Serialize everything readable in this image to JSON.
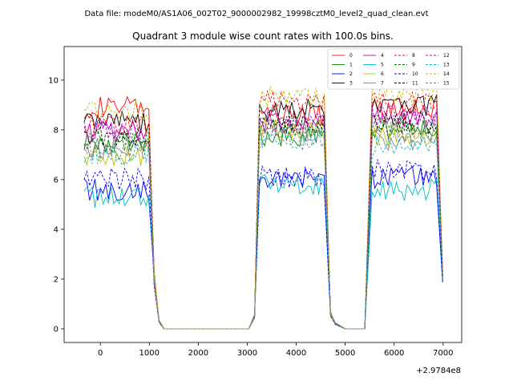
{
  "header": {
    "data_file": "Data file: modeM0/AS1A06_002T02_9000002982_19998cztM0_level2_quad_clean.evt"
  },
  "chart_data": {
    "type": "line",
    "title": "Quadrant 3 module wise count rates with 100.0s bins.",
    "xlabel": "",
    "ylabel": "",
    "x_offset_label": "+2.9784e8",
    "xlim": [
      -740,
      7380
    ],
    "ylim": [
      -0.55,
      11.35
    ],
    "xticks": [
      0,
      1000,
      2000,
      3000,
      4000,
      5000,
      6000,
      7000
    ],
    "yticks": [
      0,
      2,
      4,
      6,
      8,
      10
    ],
    "legend_position": "upper right",
    "legend_columns": 4,
    "segments": [
      {
        "x_start": -330,
        "x_end": 1000,
        "x_step": 55
      },
      {
        "x_start": 3250,
        "x_end": 4600,
        "x_step": 55
      },
      {
        "x_start": 5550,
        "x_end": 6920,
        "x_step": 55
      }
    ],
    "gap_x": [
      1100,
      1200,
      1300,
      1500,
      1700,
      1900,
      2100,
      2300,
      2500,
      2700,
      2900,
      3030,
      3150,
      4700,
      4800,
      5000,
      5200,
      5400,
      6990
    ],
    "gap_y": [
      2.0,
      0.3,
      0.0,
      0.0,
      0.0,
      0.0,
      0.0,
      0.0,
      0.0,
      0.0,
      0.0,
      0.0,
      0.5,
      0.6,
      0.2,
      0.0,
      0.0,
      0.0,
      2.2
    ],
    "series": [
      {
        "name": "0",
        "color": "#ff0000",
        "dash": false,
        "levels": [
          8.9,
          8.6,
          8.8
        ]
      },
      {
        "name": "1",
        "color": "#008000",
        "dash": false,
        "levels": [
          7.5,
          7.7,
          8.1
        ]
      },
      {
        "name": "2",
        "color": "#0000ff",
        "dash": false,
        "levels": [
          5.6,
          6.0,
          6.1
        ]
      },
      {
        "name": "3",
        "color": "#000000",
        "dash": false,
        "levels": [
          8.3,
          8.8,
          9.0
        ]
      },
      {
        "name": "4",
        "color": "#c000c0",
        "dash": false,
        "levels": [
          8.0,
          8.3,
          8.4
        ]
      },
      {
        "name": "5",
        "color": "#00bfbf",
        "dash": false,
        "levels": [
          5.3,
          5.8,
          5.6
        ]
      },
      {
        "name": "6",
        "color": "#bfbf00",
        "dash": false,
        "levels": [
          7.0,
          8.0,
          7.8
        ]
      },
      {
        "name": "7",
        "color": "#808080",
        "dash": false,
        "levels": [
          7.3,
          8.0,
          7.6
        ]
      },
      {
        "name": "8",
        "color": "#ff0000",
        "dash": true,
        "levels": [
          8.2,
          9.2,
          9.1
        ]
      },
      {
        "name": "9",
        "color": "#008000",
        "dash": true,
        "levels": [
          7.6,
          8.1,
          8.2
        ]
      },
      {
        "name": "10",
        "color": "#0000ff",
        "dash": true,
        "levels": [
          6.0,
          6.1,
          6.4
        ]
      },
      {
        "name": "11",
        "color": "#000000",
        "dash": true,
        "levels": [
          7.8,
          8.3,
          8.3
        ]
      },
      {
        "name": "12",
        "color": "#c000c0",
        "dash": true,
        "levels": [
          7.9,
          8.2,
          8.6
        ]
      },
      {
        "name": "13",
        "color": "#00bfbf",
        "dash": true,
        "levels": [
          7.0,
          7.7,
          7.3
        ]
      },
      {
        "name": "14",
        "color": "#bfbf00",
        "dash": true,
        "levels": [
          8.8,
          9.3,
          9.4
        ]
      },
      {
        "name": "15",
        "color": "#808080",
        "dash": true,
        "levels": [
          7.2,
          7.6,
          7.9
        ]
      }
    ]
  }
}
